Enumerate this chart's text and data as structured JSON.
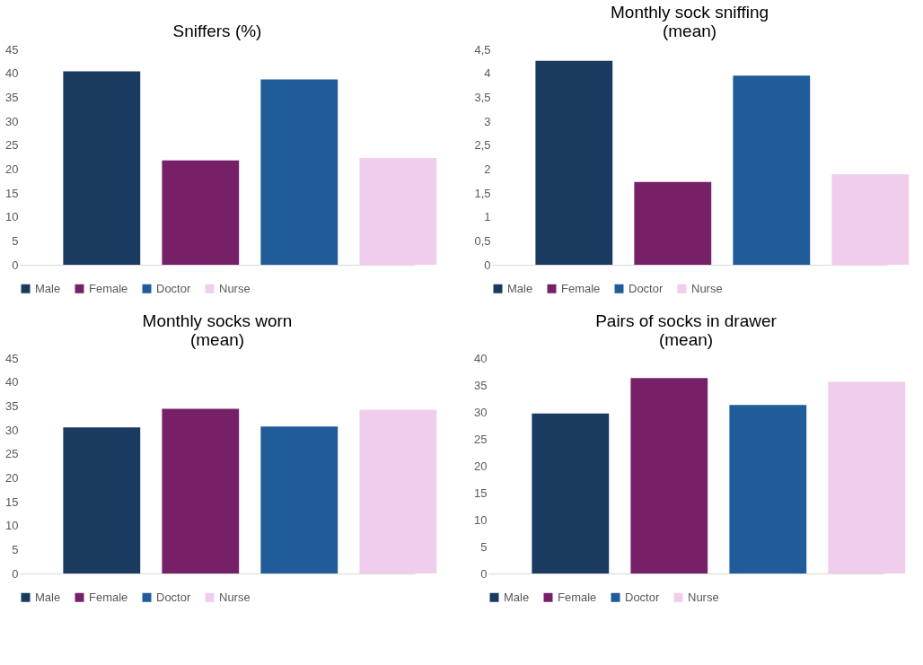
{
  "chart_data": [
    {
      "type": "bar",
      "title": "Sniffers (%)",
      "categories": [
        null
      ],
      "ylim": [
        0,
        45
      ],
      "yticks": [
        0,
        5,
        10,
        15,
        20,
        25,
        30,
        35,
        40,
        45
      ],
      "grid": false,
      "legend": "bottom",
      "series": [
        {
          "name": "Male",
          "color": "#1a3a5f",
          "values": [
            40.4
          ]
        },
        {
          "name": "Female",
          "color": "#762068",
          "values": [
            21.8
          ]
        },
        {
          "name": "Doctor",
          "color": "#1f5c99",
          "values": [
            38.7
          ]
        },
        {
          "name": "Nurse",
          "color": "#f0cdec",
          "values": [
            22.3
          ]
        }
      ]
    },
    {
      "type": "bar",
      "title": "Monthly sock sniffing\n(mean)",
      "categories": [
        null
      ],
      "ylim": [
        0,
        4.5
      ],
      "yticks": [
        0,
        {
          "value": 0.5,
          "label": "0,5"
        },
        1,
        {
          "value": 1.5,
          "label": "1,5"
        },
        2,
        {
          "value": 2.5,
          "label": "2,5"
        },
        3,
        {
          "value": 3.5,
          "label": "3,5"
        },
        4,
        {
          "value": 4.5,
          "label": "4,5"
        }
      ],
      "grid": false,
      "legend": "bottom",
      "series": [
        {
          "name": "Male",
          "color": "#1a3a5f",
          "values": [
            4.26
          ]
        },
        {
          "name": "Female",
          "color": "#762068",
          "values": [
            1.73
          ]
        },
        {
          "name": "Doctor",
          "color": "#1f5c99",
          "values": [
            3.95
          ]
        },
        {
          "name": "Nurse",
          "color": "#f0cdec",
          "values": [
            1.89
          ]
        }
      ]
    },
    {
      "type": "bar",
      "title": "Monthly socks worn\n(mean)",
      "categories": [
        null
      ],
      "ylim": [
        0,
        45
      ],
      "yticks": [
        0,
        5,
        10,
        15,
        20,
        25,
        30,
        35,
        40,
        45
      ],
      "grid": false,
      "legend": "bottom",
      "series": [
        {
          "name": "Male",
          "color": "#1a3a5f",
          "values": [
            30.5
          ]
        },
        {
          "name": "Female",
          "color": "#762068",
          "values": [
            34.4
          ]
        },
        {
          "name": "Doctor",
          "color": "#1f5c99",
          "values": [
            30.7
          ]
        },
        {
          "name": "Nurse",
          "color": "#f0cdec",
          "values": [
            34.2
          ]
        }
      ]
    },
    {
      "type": "bar",
      "title": "Pairs of socks in drawer\n(mean)",
      "categories": [
        null
      ],
      "ylim": [
        0,
        40
      ],
      "yticks": [
        0,
        5,
        10,
        15,
        20,
        25,
        30,
        35,
        40
      ],
      "grid": false,
      "legend": "bottom",
      "series": [
        {
          "name": "Male",
          "color": "#1a3a5f",
          "values": [
            29.7
          ]
        },
        {
          "name": "Female",
          "color": "#762068",
          "values": [
            36.3
          ]
        },
        {
          "name": "Doctor",
          "color": "#1f5c99",
          "values": [
            31.3
          ]
        },
        {
          "name": "Nurse",
          "color": "#f0cdec",
          "values": [
            35.6
          ]
        }
      ]
    }
  ]
}
